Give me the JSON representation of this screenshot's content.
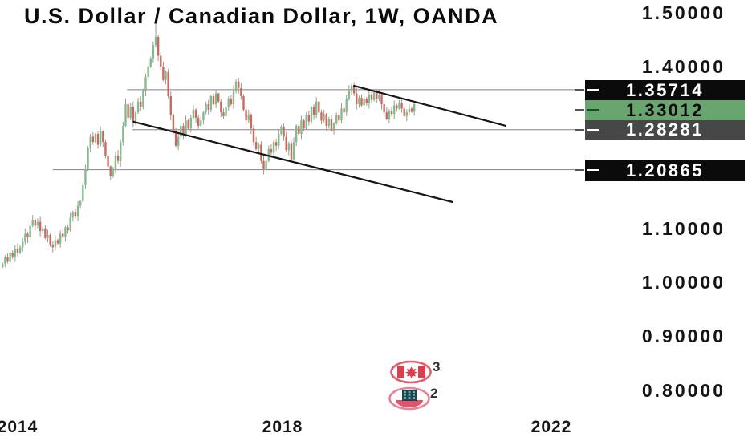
{
  "title": {
    "text": "U.S. Dollar / Canadian Dollar, 1W, OANDA"
  },
  "colors": {
    "background": "#ffffff",
    "up": "#84bb8e",
    "down": "#ca6a5f",
    "wick": "#a0988a",
    "ray_line": "#828282",
    "trend_line": "#161616",
    "label_black_bg": "#0b0b0b",
    "label_gray_bg": "#474747",
    "label_green_bg": "#69a56f",
    "flag_red": "#dd3d4c",
    "ring_pink": "#e25b6e",
    "building_dark": "#27404f",
    "window_teal": "#5ab5ab"
  },
  "y_axis": {
    "ticks": [
      "1.50000",
      "1.40000",
      "1.10000",
      "1.00000",
      "0.90000",
      "0.80000"
    ]
  },
  "x_axis": {
    "ticks": [
      "2014",
      "2018",
      "2022"
    ]
  },
  "price_labels": [
    {
      "value": "1.35714",
      "style": "black",
      "role": "ray-level"
    },
    {
      "value": "1.33012",
      "style": "green",
      "role": "last-price"
    },
    {
      "value": "1.28281",
      "style": "gray",
      "role": "ray-level"
    },
    {
      "value": "1.20865",
      "style": "black",
      "role": "ray-level"
    }
  ],
  "events": [
    {
      "icon": "canada-flag-events",
      "count": "3"
    },
    {
      "icon": "earnings-building",
      "count": "2"
    }
  ],
  "chart_data": {
    "type": "candlestick",
    "title": "U.S. Dollar / Canadian Dollar",
    "symbol": "USD/CAD",
    "timeframe": "1W",
    "exchange": "OANDA",
    "x_range_years": [
      2013.73,
      2022.6
    ],
    "visible_price_range": [
      0.706,
      1.523
    ],
    "grid": "off",
    "last_close": 1.33012,
    "first_open": 1.028,
    "closes": [
      1.035,
      1.046,
      1.038,
      1.055,
      1.048,
      1.062,
      1.055,
      1.065,
      1.075,
      1.09,
      1.083,
      1.105,
      1.115,
      1.105,
      1.112,
      1.095,
      1.1,
      1.082,
      1.088,
      1.07,
      1.065,
      1.078,
      1.072,
      1.09,
      1.085,
      1.102,
      1.096,
      1.12,
      1.13,
      1.122,
      1.142,
      1.15,
      1.18,
      1.21,
      1.25,
      1.27,
      1.26,
      1.275,
      1.255,
      1.28,
      1.26,
      1.235,
      1.215,
      1.197,
      1.21,
      1.235,
      1.225,
      1.26,
      1.29,
      1.33,
      1.305,
      1.325,
      1.298,
      1.315,
      1.335,
      1.325,
      1.355,
      1.38,
      1.4,
      1.415,
      1.44,
      1.455,
      1.42,
      1.4,
      1.375,
      1.39,
      1.345,
      1.31,
      1.28,
      1.253,
      1.27,
      1.29,
      1.275,
      1.3,
      1.285,
      1.305,
      1.32,
      1.305,
      1.29,
      1.3,
      1.315,
      1.33,
      1.32,
      1.345,
      1.33,
      1.35,
      1.335,
      1.315,
      1.308,
      1.325,
      1.34,
      1.33,
      1.355,
      1.372,
      1.36,
      1.345,
      1.32,
      1.3,
      1.31,
      1.285,
      1.26,
      1.247,
      1.255,
      1.225,
      1.21,
      1.225,
      1.247,
      1.24,
      1.26,
      1.253,
      1.275,
      1.288,
      1.27,
      1.245,
      1.258,
      1.228,
      1.26,
      1.29,
      1.275,
      1.3,
      1.285,
      1.31,
      1.298,
      1.325,
      1.31,
      1.335,
      1.315,
      1.3,
      1.312,
      1.29,
      1.302,
      1.281,
      1.295,
      1.31,
      1.3,
      1.322,
      1.315,
      1.34,
      1.355,
      1.364,
      1.35,
      1.33,
      1.342,
      1.328,
      1.34,
      1.332,
      1.348,
      1.338,
      1.352,
      1.34,
      1.348,
      1.33,
      1.315,
      1.303,
      1.318,
      1.312,
      1.328,
      1.322,
      1.332,
      1.322,
      1.308,
      1.315,
      1.322,
      1.316,
      1.33012
    ],
    "high_overrides": {
      "61": 1.479
    },
    "levels": [
      {
        "price": 1.35714,
        "start_year": 2015.65
      },
      {
        "price": 1.28281,
        "start_year": 2015.73
      },
      {
        "price": 1.20865,
        "start_year": 2014.53
      }
    ],
    "trendlines": [
      {
        "name": "upper",
        "year1": 2019.08,
        "price1": 1.3643,
        "year2": 2021.37,
        "price2": 1.29
      },
      {
        "name": "lower",
        "year1": 2015.75,
        "price1": 1.2975,
        "year2": 2020.57,
        "price2": 1.1487
      }
    ]
  }
}
